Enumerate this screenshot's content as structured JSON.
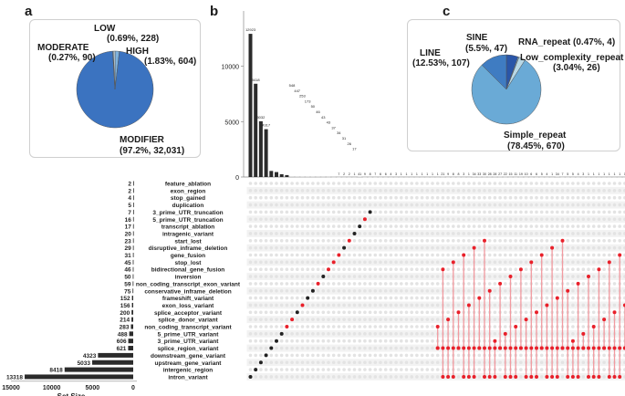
{
  "panels": {
    "a": "a",
    "b": "b",
    "c": "c"
  },
  "chart_data": [
    {
      "type": "pie",
      "panel": "a",
      "slices": [
        {
          "label": "MODIFIER",
          "percent": 97.2,
          "count": 32031,
          "count_text": "32,031",
          "color": "#3b73c0"
        },
        {
          "label": "HIGH",
          "percent": 1.83,
          "count": 604,
          "count_text": "604",
          "color": "#7fb2dd"
        },
        {
          "label": "LOW",
          "percent": 0.69,
          "count": 228,
          "count_text": "228",
          "color": "#c9dde9"
        },
        {
          "label": "MODERATE",
          "percent": 0.27,
          "count": 90,
          "count_text": "90",
          "color": "#5a8fc9"
        }
      ],
      "labels": {
        "modifier": [
          "MODIFIER",
          "(97.2%, 32,031)"
        ],
        "high": [
          "HIGH",
          "(1.83%, 604)"
        ],
        "low": [
          "LOW",
          "(0.69%, 228)"
        ],
        "moderate": [
          "MODERATE",
          "(0.27%, 90)"
        ]
      }
    },
    {
      "type": "pie",
      "panel": "c",
      "slices": [
        {
          "label": "SINE",
          "percent": 5.5,
          "count": 47,
          "color": "#2a56a8"
        },
        {
          "label": "RNA_repeat",
          "percent": 0.47,
          "count": 4,
          "color": "#8fb9d8"
        },
        {
          "label": "Low_complexity_repeat",
          "percent": 3.04,
          "count": 26,
          "color": "#b8d8e6"
        },
        {
          "label": "Simple_repeat",
          "percent": 78.45,
          "count": 670,
          "color": "#6aaad6"
        },
        {
          "label": "LINE",
          "percent": 12.53,
          "count": 107,
          "color": "#3f7cc2"
        }
      ],
      "labels": {
        "sine": [
          "SINE",
          "(5.5%, 47)"
        ],
        "rna": [
          "RNA_repeat (0.47%, 4)"
        ],
        "lowc": [
          "Low_complexity_repeat",
          "(3.04%, 26)"
        ],
        "simple": [
          "Simple_repeat",
          "(78.45%, 670)"
        ],
        "line": [
          "LINE",
          "(12.53%, 107)"
        ]
      }
    },
    {
      "type": "bar",
      "panel": "b",
      "subtype": "upset",
      "ylim": [
        0,
        14000
      ],
      "yticks": [
        0,
        5000,
        10000
      ],
      "intersection_sizes": [
        12923,
        8418,
        5032,
        4317,
        548,
        447,
        253,
        173,
        50,
        46,
        43,
        43,
        37,
        34,
        31,
        26,
        17,
        7,
        2,
        2,
        1,
        41,
        9,
        8,
        7,
        6,
        6,
        4,
        3,
        1,
        1,
        1,
        1,
        1,
        1,
        1,
        1,
        21,
        9,
        8,
        8,
        3,
        1,
        34,
        33,
        30,
        28,
        28,
        27,
        22,
        15,
        11,
        19,
        10,
        6,
        6,
        5,
        4,
        1,
        34,
        7,
        5,
        5,
        4,
        3,
        1,
        1,
        1,
        1,
        1,
        1,
        1,
        1,
        8
      ],
      "labeled_count": 17,
      "set_size_axis": {
        "label": "Set Size",
        "ticks": [
          15000,
          10000,
          5000,
          0
        ],
        "xlim": [
          15000,
          0
        ]
      },
      "sets": [
        {
          "name": "feature_ablation",
          "size": 2
        },
        {
          "name": "exon_region",
          "size": 2
        },
        {
          "name": "stop_gained",
          "size": 4
        },
        {
          "name": "duplication",
          "size": 5
        },
        {
          "name": "3_prime_UTR_truncation",
          "size": 7
        },
        {
          "name": "5_prime_UTR_truncation",
          "size": 16
        },
        {
          "name": "transcript_ablation",
          "size": 17
        },
        {
          "name": "intragenic_variant",
          "size": 20
        },
        {
          "name": "start_lost",
          "size": 23
        },
        {
          "name": "disruptive_inframe_deletion",
          "size": 29
        },
        {
          "name": "gene_fusion",
          "size": 31
        },
        {
          "name": "stop_lost",
          "size": 45
        },
        {
          "name": "bidirectional_gene_fusion",
          "size": 46
        },
        {
          "name": "inversion",
          "size": 50
        },
        {
          "name": "non_coding_transcript_exon_variant",
          "size": 59
        },
        {
          "name": "conservative_inframe_deletion",
          "size": 75
        },
        {
          "name": "frameshift_variant",
          "size": 152
        },
        {
          "name": "exon_loss_variant",
          "size": 156
        },
        {
          "name": "splice_acceptor_variant",
          "size": 200
        },
        {
          "name": "splice_donor_variant",
          "size": 214
        },
        {
          "name": "non_coding_transcript_variant",
          "size": 283
        },
        {
          "name": "5_prime_UTR_variant",
          "size": 488
        },
        {
          "name": "3_prime_UTR_variant",
          "size": 606
        },
        {
          "name": "splice_region_variant",
          "size": 621
        },
        {
          "name": "downstream_gene_variant",
          "size": 4323
        },
        {
          "name": "upstream_gene_variant",
          "size": 5033
        },
        {
          "name": "intergenic_region",
          "size": 8418
        },
        {
          "name": "intron_variant",
          "size": 13318
        }
      ],
      "colors": {
        "bar": "#2b2b2b",
        "dot_on_black": "#222222",
        "dot_on_red": "#e8202a",
        "dot_off": "#e3e3e3",
        "stripe": "#f2f2f2"
      }
    }
  ]
}
